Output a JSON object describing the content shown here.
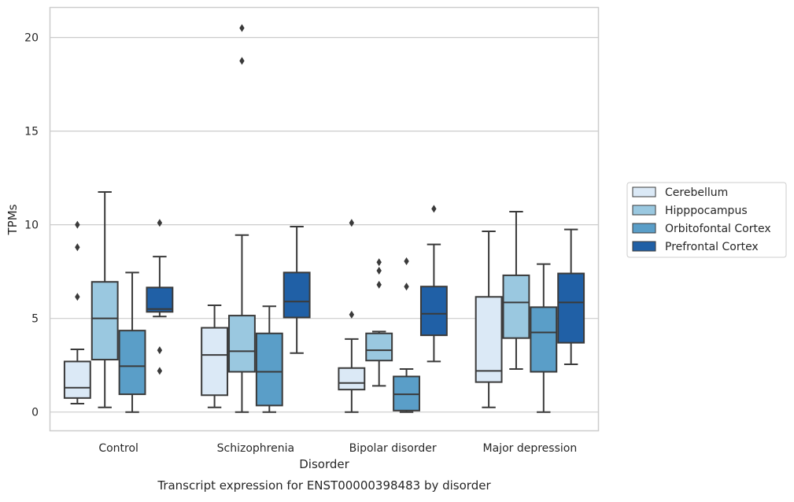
{
  "chart_data": {
    "type": "boxplot",
    "title": "Transcript expression for ENST00000398483 by disorder",
    "xlabel": "Disorder",
    "ylabel": "TPMs",
    "ylim": [
      -1,
      21.6
    ],
    "yticks": [
      0,
      5,
      10,
      15,
      20
    ],
    "grid": "horizontal",
    "legend_position": "right",
    "categories": [
      "Control",
      "Schizophrenia",
      "Bipolar disorder",
      "Major depression"
    ],
    "series": [
      {
        "name": "Cerebellum",
        "color": "#dbe9f6",
        "boxes": [
          {
            "whisker_low": 0.45,
            "q1": 0.75,
            "median": 1.3,
            "q3": 2.7,
            "whisker_high": 3.35,
            "outliers": [
              6.15,
              8.8,
              10.0
            ]
          },
          {
            "whisker_low": 0.25,
            "q1": 0.9,
            "median": 3.05,
            "q3": 4.5,
            "whisker_high": 5.7,
            "outliers": []
          },
          {
            "whisker_low": 0.0,
            "q1": 1.2,
            "median": 1.55,
            "q3": 2.35,
            "whisker_high": 3.9,
            "outliers": [
              5.2,
              10.1
            ]
          },
          {
            "whisker_low": 0.25,
            "q1": 1.6,
            "median": 2.2,
            "q3": 6.15,
            "whisker_high": 9.65,
            "outliers": []
          }
        ]
      },
      {
        "name": "Hipppocampus",
        "color": "#9ac8e0",
        "boxes": [
          {
            "whisker_low": 0.25,
            "q1": 2.8,
            "median": 5.0,
            "q3": 6.95,
            "whisker_high": 11.75,
            "outliers": []
          },
          {
            "whisker_low": 0.0,
            "q1": 2.15,
            "median": 3.25,
            "q3": 5.15,
            "whisker_high": 9.45,
            "outliers": [
              18.75,
              20.5
            ]
          },
          {
            "whisker_low": 1.4,
            "q1": 2.75,
            "median": 3.3,
            "q3": 4.2,
            "whisker_high": 4.3,
            "outliers": [
              6.8,
              7.55,
              8.0
            ]
          },
          {
            "whisker_low": 2.3,
            "q1": 3.95,
            "median": 5.85,
            "q3": 7.3,
            "whisker_high": 10.7,
            "outliers": []
          }
        ]
      },
      {
        "name": "Orbitofontal Cortex",
        "color": "#5a9ec8",
        "boxes": [
          {
            "whisker_low": 0.0,
            "q1": 0.95,
            "median": 2.45,
            "q3": 4.35,
            "whisker_high": 7.45,
            "outliers": []
          },
          {
            "whisker_low": 0.0,
            "q1": 0.35,
            "median": 2.15,
            "q3": 4.2,
            "whisker_high": 5.65,
            "outliers": []
          },
          {
            "whisker_low": 0.0,
            "q1": 0.08,
            "median": 0.95,
            "q3": 1.9,
            "whisker_high": 2.3,
            "outliers": [
              6.7,
              8.05
            ]
          },
          {
            "whisker_low": 0.0,
            "q1": 2.15,
            "median": 4.25,
            "q3": 5.6,
            "whisker_high": 7.9,
            "outliers": []
          }
        ]
      },
      {
        "name": "Prefrontal Cortex",
        "color": "#2060a6",
        "boxes": [
          {
            "whisker_low": 5.1,
            "q1": 5.35,
            "median": 5.5,
            "q3": 6.65,
            "whisker_high": 8.3,
            "outliers": [
              2.2,
              3.3,
              10.1
            ]
          },
          {
            "whisker_low": 3.15,
            "q1": 5.05,
            "median": 5.9,
            "q3": 7.45,
            "whisker_high": 9.9,
            "outliers": []
          },
          {
            "whisker_low": 2.7,
            "q1": 4.1,
            "median": 5.25,
            "q3": 6.7,
            "whisker_high": 8.95,
            "outliers": [
              10.85
            ]
          },
          {
            "whisker_low": 2.55,
            "q1": 3.7,
            "median": 5.85,
            "q3": 7.4,
            "whisker_high": 9.75,
            "outliers": []
          }
        ]
      }
    ]
  }
}
